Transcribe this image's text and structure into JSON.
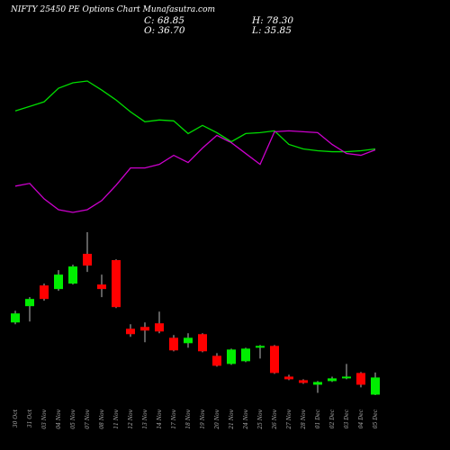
{
  "chart_data": {
    "type": "candlestick",
    "title": "NIFTY 25450  PE Options  Chart Munafasutra.com",
    "stats": [
      "C: 68.85",
      "H: 78.30",
      "O: 36.70",
      "L: 35.85"
    ],
    "up_color": "#00ee00",
    "down_color": "#ff0000",
    "categories": [
      "30 Oct",
      "31 Oct",
      "03 Nov",
      "04 Nov",
      "05 Nov",
      "07 Nov",
      "08 Nov",
      "11 Nov",
      "12 Nov",
      "13 Nov",
      "14 Nov",
      "17 Nov",
      "18 Nov",
      "19 Nov",
      "20 Nov",
      "21 Nov",
      "24 Nov",
      "25 Nov",
      "26 Nov",
      "27 Nov",
      "28 Nov",
      "01 Dec",
      "02 Dec",
      "03 Dec",
      "04 Dec",
      "05 Dec"
    ],
    "open": [
      171.9,
      202.4,
      241.2,
      234.5,
      244.6,
      300.4,
      242.9,
      288.6,
      160.1,
      163.5,
      170.3,
      143.2,
      133.1,
      150.0,
      109.4,
      94.2,
      99.3,
      124.6,
      128.0,
      70.5,
      63.8,
      55.3,
      62.1,
      67.2,
      77.3,
      36.7
    ],
    "high": [
      193.9,
      219.3,
      244.6,
      270.0,
      280.1,
      340.9,
      261.5,
      290.2,
      168.6,
      171.9,
      192.2,
      148.3,
      151.7,
      151.7,
      114.5,
      122.9,
      124.6,
      129.7,
      129.7,
      73.9,
      65.5,
      62.1,
      70.5,
      94.2,
      79.0,
      78.3
    ],
    "low": [
      168.6,
      173.6,
      212.5,
      231.1,
      242.9,
      266.6,
      219.3,
      199.0,
      144.9,
      134.8,
      151.7,
      117.9,
      124.6,
      116.2,
      89.1,
      92.5,
      97.6,
      104.3,
      75.6,
      63.8,
      57.0,
      40.1,
      60.4,
      65.5,
      50.3,
      35.85
    ],
    "close": [
      188.8,
      215.9,
      215.9,
      261.5,
      276.7,
      278.4,
      234.5,
      200.7,
      150.0,
      156.7,
      155.0,
      119.6,
      143.2,
      117.9,
      90.8,
      121.2,
      122.9,
      128.0,
      77.3,
      65.5,
      58.7,
      60.4,
      67.2,
      70.5,
      55.3,
      68.85
    ],
    "indicators": [
      {
        "color": "#00dd00",
        "values": [
          137,
          142,
          147,
          162,
          168,
          170,
          160,
          149,
          136,
          125,
          127,
          126,
          112,
          121,
          113,
          103,
          112,
          113,
          115,
          100,
          95,
          93,
          92,
          92,
          93,
          95
        ]
      },
      {
        "color": "#cc00cc",
        "values": [
          54,
          57,
          40,
          28,
          25,
          28,
          38,
          55,
          74,
          74,
          78,
          88,
          80,
          96,
          110,
          102,
          90,
          78,
          114,
          115,
          114,
          113,
          100,
          90,
          88,
          94
        ]
      }
    ]
  }
}
